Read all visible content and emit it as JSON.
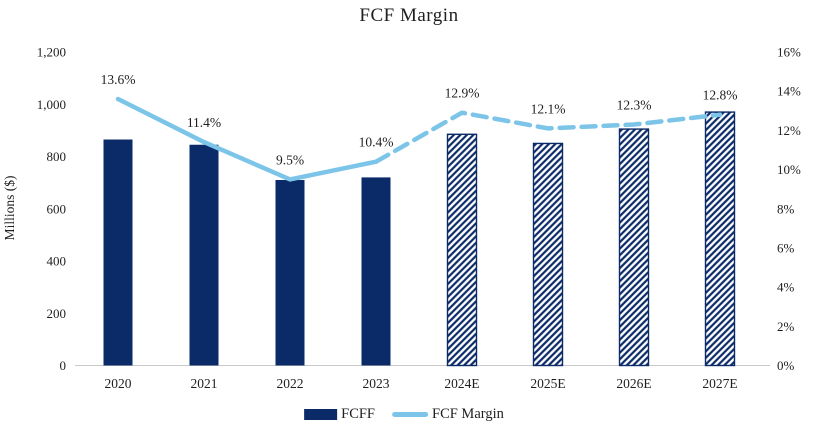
{
  "title": "FCF Margin",
  "colors": {
    "bar_fill": "#0A2A68",
    "line": "#7CC5E9",
    "axis_line": "#C9C9C9",
    "text": "#1F1F1F"
  },
  "legend": {
    "fcff_label": "FCFF",
    "margin_label": "FCF Margin"
  },
  "chart_data": {
    "type": "bar",
    "subtype": "combo-bar-line-dual-axis",
    "title": "FCF Margin",
    "categories": [
      "2020",
      "2021",
      "2022",
      "2023",
      "2024E",
      "2025E",
      "2026E",
      "2027E"
    ],
    "series": [
      {
        "name": "FCFF",
        "type": "bar",
        "axis": "left",
        "values": [
          865,
          845,
          710,
          720,
          885,
          850,
          905,
          970
        ],
        "estimate_flags": [
          false,
          false,
          false,
          false,
          true,
          true,
          true,
          true
        ],
        "estimate_style": "diagonal-hatch"
      },
      {
        "name": "FCF Margin",
        "type": "line",
        "axis": "right",
        "values": [
          13.6,
          11.4,
          9.5,
          10.4,
          12.9,
          12.1,
          12.3,
          12.8
        ],
        "point_labels": [
          "13.6%",
          "11.4%",
          "9.5%",
          "10.4%",
          "12.9%",
          "12.1%",
          "12.3%",
          "12.8%"
        ],
        "solid_through_index": 3,
        "dashed_from_index": 3
      }
    ],
    "left_axis": {
      "title": "Millions ($)",
      "min": 0,
      "max": 1200,
      "tick_step": 200,
      "tick_labels": [
        "0",
        "200",
        "400",
        "600",
        "800",
        "1,000",
        "1,200"
      ]
    },
    "right_axis": {
      "min": 0,
      "max": 16,
      "tick_step": 2,
      "tick_labels": [
        "0%",
        "2%",
        "4%",
        "6%",
        "8%",
        "10%",
        "12%",
        "14%",
        "16%"
      ]
    },
    "grid": false,
    "legend_position": "bottom"
  }
}
